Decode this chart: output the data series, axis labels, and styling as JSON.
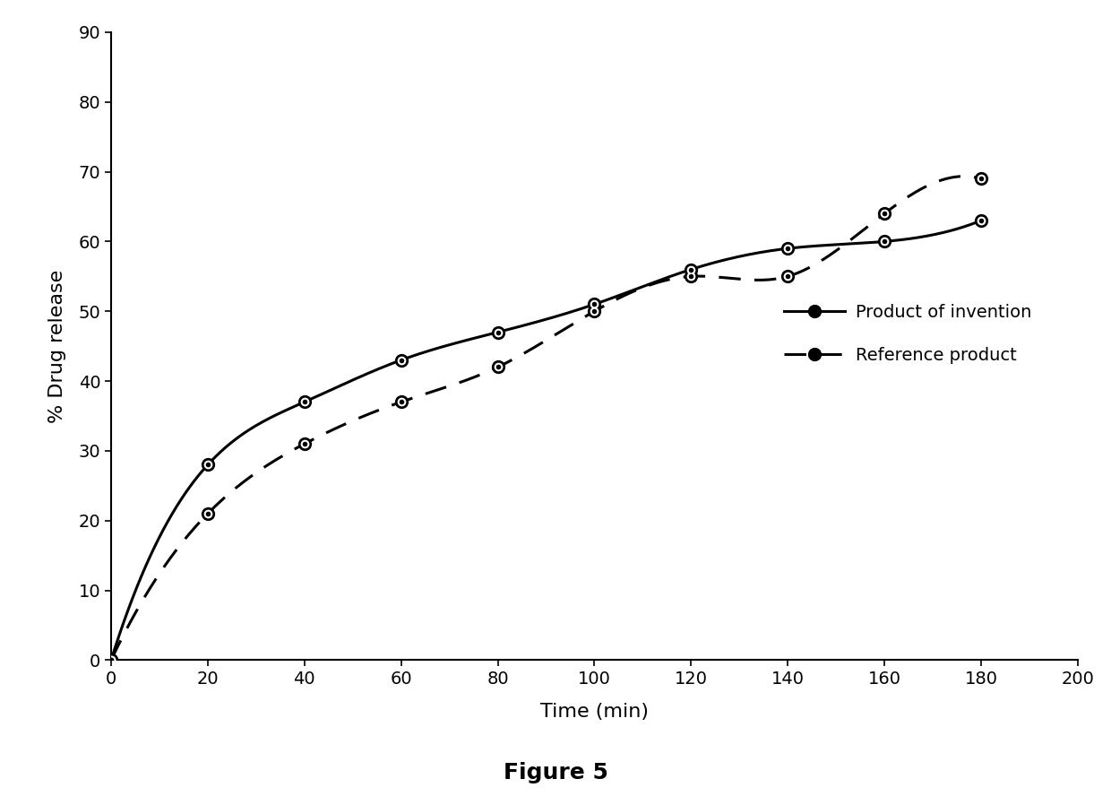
{
  "invention_x": [
    0,
    20,
    40,
    60,
    80,
    100,
    120,
    140,
    160,
    180
  ],
  "invention_y": [
    0,
    28,
    37,
    43,
    47,
    51,
    56,
    59,
    60,
    63
  ],
  "reference_x": [
    0,
    20,
    40,
    60,
    80,
    100,
    120,
    140,
    160,
    180
  ],
  "reference_y": [
    0,
    21,
    31,
    37,
    42,
    50,
    55,
    55,
    64,
    69
  ],
  "xlabel": "Time (min)",
  "ylabel": "% Drug release",
  "xlim": [
    0,
    200
  ],
  "ylim": [
    0,
    90
  ],
  "xticks": [
    0,
    20,
    40,
    60,
    80,
    100,
    120,
    140,
    160,
    180,
    200
  ],
  "yticks": [
    0,
    10,
    20,
    30,
    40,
    50,
    60,
    70,
    80,
    90
  ],
  "legend_invention": "Product of invention",
  "legend_reference": "Reference product",
  "figure_label": "Figure 5",
  "line_color": "#000000",
  "bg_color": "#ffffff",
  "label_fontsize": 16,
  "tick_fontsize": 14,
  "legend_fontsize": 14,
  "figure_label_fontsize": 18
}
